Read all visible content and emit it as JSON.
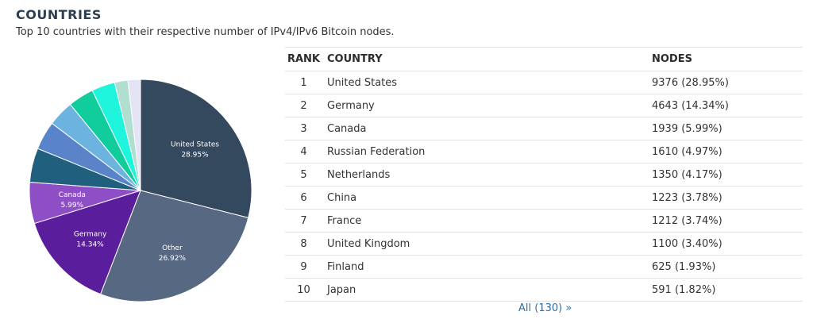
{
  "header": {
    "title": "COUNTRIES",
    "subtitle": "Top 10 countries with their respective number of IPv4/IPv6 Bitcoin nodes."
  },
  "table": {
    "headers": {
      "rank": "RANK",
      "country": "COUNTRY",
      "nodes": "NODES"
    },
    "rows": [
      {
        "rank": "1",
        "country": "United States",
        "nodes": "9376 (28.95%)"
      },
      {
        "rank": "2",
        "country": "Germany",
        "nodes": "4643 (14.34%)"
      },
      {
        "rank": "3",
        "country": "Canada",
        "nodes": "1939 (5.99%)"
      },
      {
        "rank": "4",
        "country": "Russian Federation",
        "nodes": "1610 (4.97%)"
      },
      {
        "rank": "5",
        "country": "Netherlands",
        "nodes": "1350 (4.17%)"
      },
      {
        "rank": "6",
        "country": "China",
        "nodes": "1223 (3.78%)"
      },
      {
        "rank": "7",
        "country": "France",
        "nodes": "1212 (3.74%)"
      },
      {
        "rank": "8",
        "country": "United Kingdom",
        "nodes": "1100 (3.40%)"
      },
      {
        "rank": "9",
        "country": "Finland",
        "nodes": "625 (1.93%)"
      },
      {
        "rank": "10",
        "country": "Japan",
        "nodes": "591 (1.82%)"
      }
    ],
    "all_link": "All (130) »"
  },
  "chart_data": {
    "type": "pie",
    "slices": [
      {
        "label": "United States",
        "value": 28.95,
        "color": "#34495e",
        "show_label": true,
        "label_text": "United States",
        "percent_text": "28.95%"
      },
      {
        "label": "Other",
        "value": 26.92,
        "color": "#576882",
        "show_label": true,
        "label_text": "Other",
        "percent_text": "26.92%"
      },
      {
        "label": "Germany",
        "value": 14.34,
        "color": "#5a1e9c",
        "show_label": true,
        "label_text": "Germany",
        "percent_text": "14.34%"
      },
      {
        "label": "Canada",
        "value": 5.99,
        "color": "#8e4ec6",
        "show_label": true,
        "label_text": "Canada",
        "percent_text": "5.99%"
      },
      {
        "label": "Russian Federation",
        "value": 4.97,
        "color": "#20607e",
        "show_label": false
      },
      {
        "label": "Netherlands",
        "value": 4.17,
        "color": "#5a84c9",
        "show_label": false
      },
      {
        "label": "China",
        "value": 3.78,
        "color": "#6db3df",
        "show_label": false
      },
      {
        "label": "France",
        "value": 3.74,
        "color": "#11cc9b",
        "show_label": false
      },
      {
        "label": "United Kingdom",
        "value": 3.4,
        "color": "#1ff5dd",
        "show_label": false
      },
      {
        "label": "Finland",
        "value": 1.93,
        "color": "#b0dfcf",
        "show_label": false
      },
      {
        "label": "Japan",
        "value": 1.82,
        "color": "#e4e4f6",
        "show_label": false
      }
    ]
  }
}
